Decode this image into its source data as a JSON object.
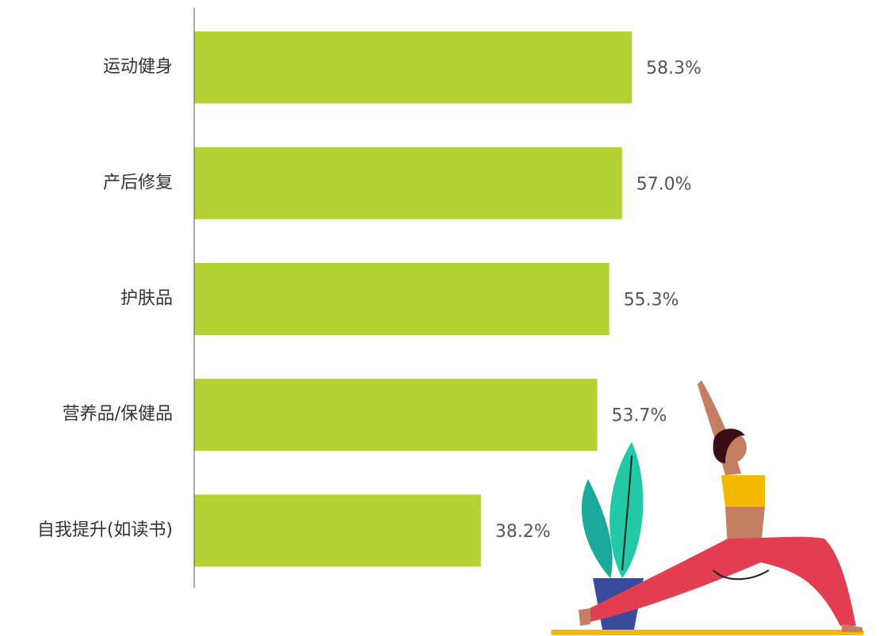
{
  "chart_data": {
    "type": "bar",
    "orientation": "horizontal",
    "categories": [
      "运动健身",
      "产后修复",
      "护肤品",
      "营养品/保健品",
      "自我提升(如读书)"
    ],
    "values": [
      58.3,
      57.0,
      55.3,
      53.7,
      38.2
    ],
    "value_labels": [
      "58.3%",
      "57.0%",
      "55.3%",
      "53.7%",
      "38.2%"
    ],
    "color": "#b2d235",
    "xlim": [
      0,
      100
    ]
  }
}
